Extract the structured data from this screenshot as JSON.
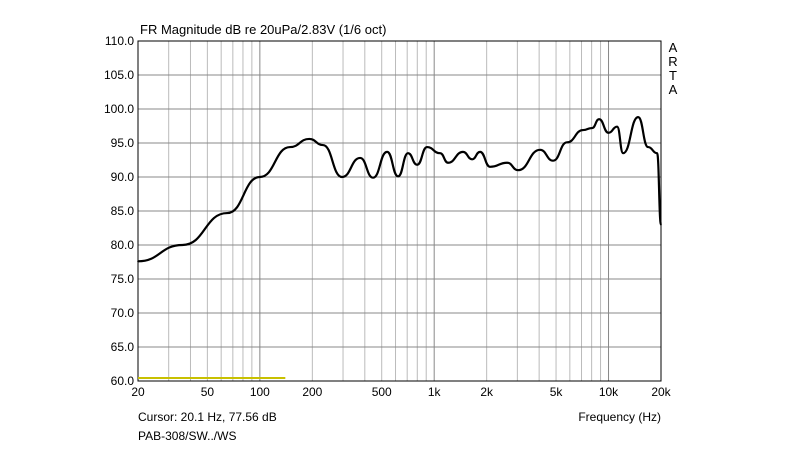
{
  "chart_data": {
    "type": "line",
    "title": "FR Magnitude dB re 20uPa/2.83V (1/6 oct)",
    "xlabel": "Frequency (Hz)",
    "ylabel": "",
    "xscale": "log",
    "xlim": [
      20,
      20000
    ],
    "ylim": [
      60,
      110
    ],
    "grid": true,
    "xticks": [
      {
        "v": 20,
        "l": "20"
      },
      {
        "v": 50,
        "l": "50"
      },
      {
        "v": 100,
        "l": "100"
      },
      {
        "v": 200,
        "l": "200"
      },
      {
        "v": 500,
        "l": "500"
      },
      {
        "v": 1000,
        "l": "1k"
      },
      {
        "v": 2000,
        "l": "2k"
      },
      {
        "v": 5000,
        "l": "5k"
      },
      {
        "v": 10000,
        "l": "10k"
      },
      {
        "v": 20000,
        "l": "20k"
      }
    ],
    "yticks": [
      "110.0",
      "105.0",
      "100.0",
      "95.0",
      "90.0",
      "85.0",
      "80.0",
      "75.0",
      "70.0",
      "65.0",
      "60.0"
    ],
    "series": [
      {
        "name": "PAB-308/SW../WS",
        "color": "#000000",
        "x": [
          20,
          36,
          65,
          100,
          149,
          192,
          230,
          296,
          376,
          446,
          537,
          621,
          708,
          798,
          910,
          1081,
          1201,
          1464,
          1650,
          1833,
          2094,
          2620,
          3028,
          4050,
          4807,
          5780,
          7150,
          8050,
          8830,
          10000,
          11200,
          12130,
          14790,
          16870,
          19000,
          20000
        ],
        "y": [
          77.6,
          80.0,
          84.7,
          90.0,
          94.4,
          95.6,
          94.7,
          90.0,
          92.8,
          89.9,
          93.7,
          90.1,
          93.5,
          91.8,
          94.4,
          93.5,
          92.1,
          93.7,
          92.6,
          93.7,
          91.5,
          92.1,
          91.0,
          94.0,
          92.4,
          95.1,
          96.9,
          97.2,
          98.5,
          96.5,
          97.4,
          93.5,
          98.8,
          94.4,
          93.5,
          83.0
        ]
      }
    ],
    "cursor_marker": {
      "from": 20,
      "to": 140,
      "color": "#c8c000"
    }
  },
  "watermark": "ARTA",
  "cursor_text": "Cursor: 20.1 Hz, 77.56 dB",
  "file_label": "PAB-308/SW../WS"
}
